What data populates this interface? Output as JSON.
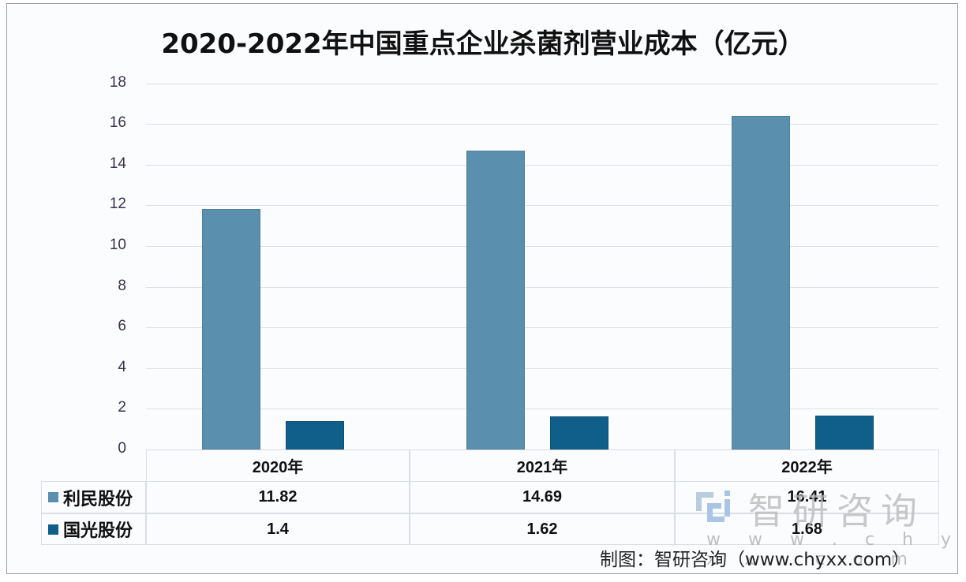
{
  "title": "2020-2022年中国重点企业杀菌剂营业成本（亿元）",
  "yaxis": {
    "ticks": [
      "0",
      "2",
      "4",
      "6",
      "8",
      "10",
      "12",
      "14",
      "16",
      "18"
    ]
  },
  "table": {
    "headers": [
      "2020年",
      "2021年",
      "2022年"
    ],
    "rows": [
      {
        "label": "利民股份",
        "values": [
          "11.82",
          "14.69",
          "16.41"
        ]
      },
      {
        "label": "国光股份",
        "values": [
          "1.4",
          "1.62",
          "1.68"
        ]
      }
    ]
  },
  "watermark": {
    "name": "智研咨询",
    "url": "w w w . c h y x x . c o m"
  },
  "source": "制图：智研咨询（www.chyxx.com）",
  "colors": {
    "series1": "#5b8fae",
    "series2": "#0f5f8a"
  },
  "chart_data": {
    "type": "bar",
    "title": "2020-2022年中国重点企业杀菌剂营业成本（亿元）",
    "categories": [
      "2020年",
      "2021年",
      "2022年"
    ],
    "series": [
      {
        "name": "利民股份",
        "values": [
          11.82,
          14.69,
          16.41
        ],
        "color": "#5b8fae"
      },
      {
        "name": "国光股份",
        "values": [
          1.4,
          1.62,
          1.68
        ],
        "color": "#0f5f8a"
      }
    ],
    "xlabel": "",
    "ylabel": "",
    "ylim": [
      0,
      18
    ],
    "grid": true,
    "legend_position": "data-table-below"
  }
}
